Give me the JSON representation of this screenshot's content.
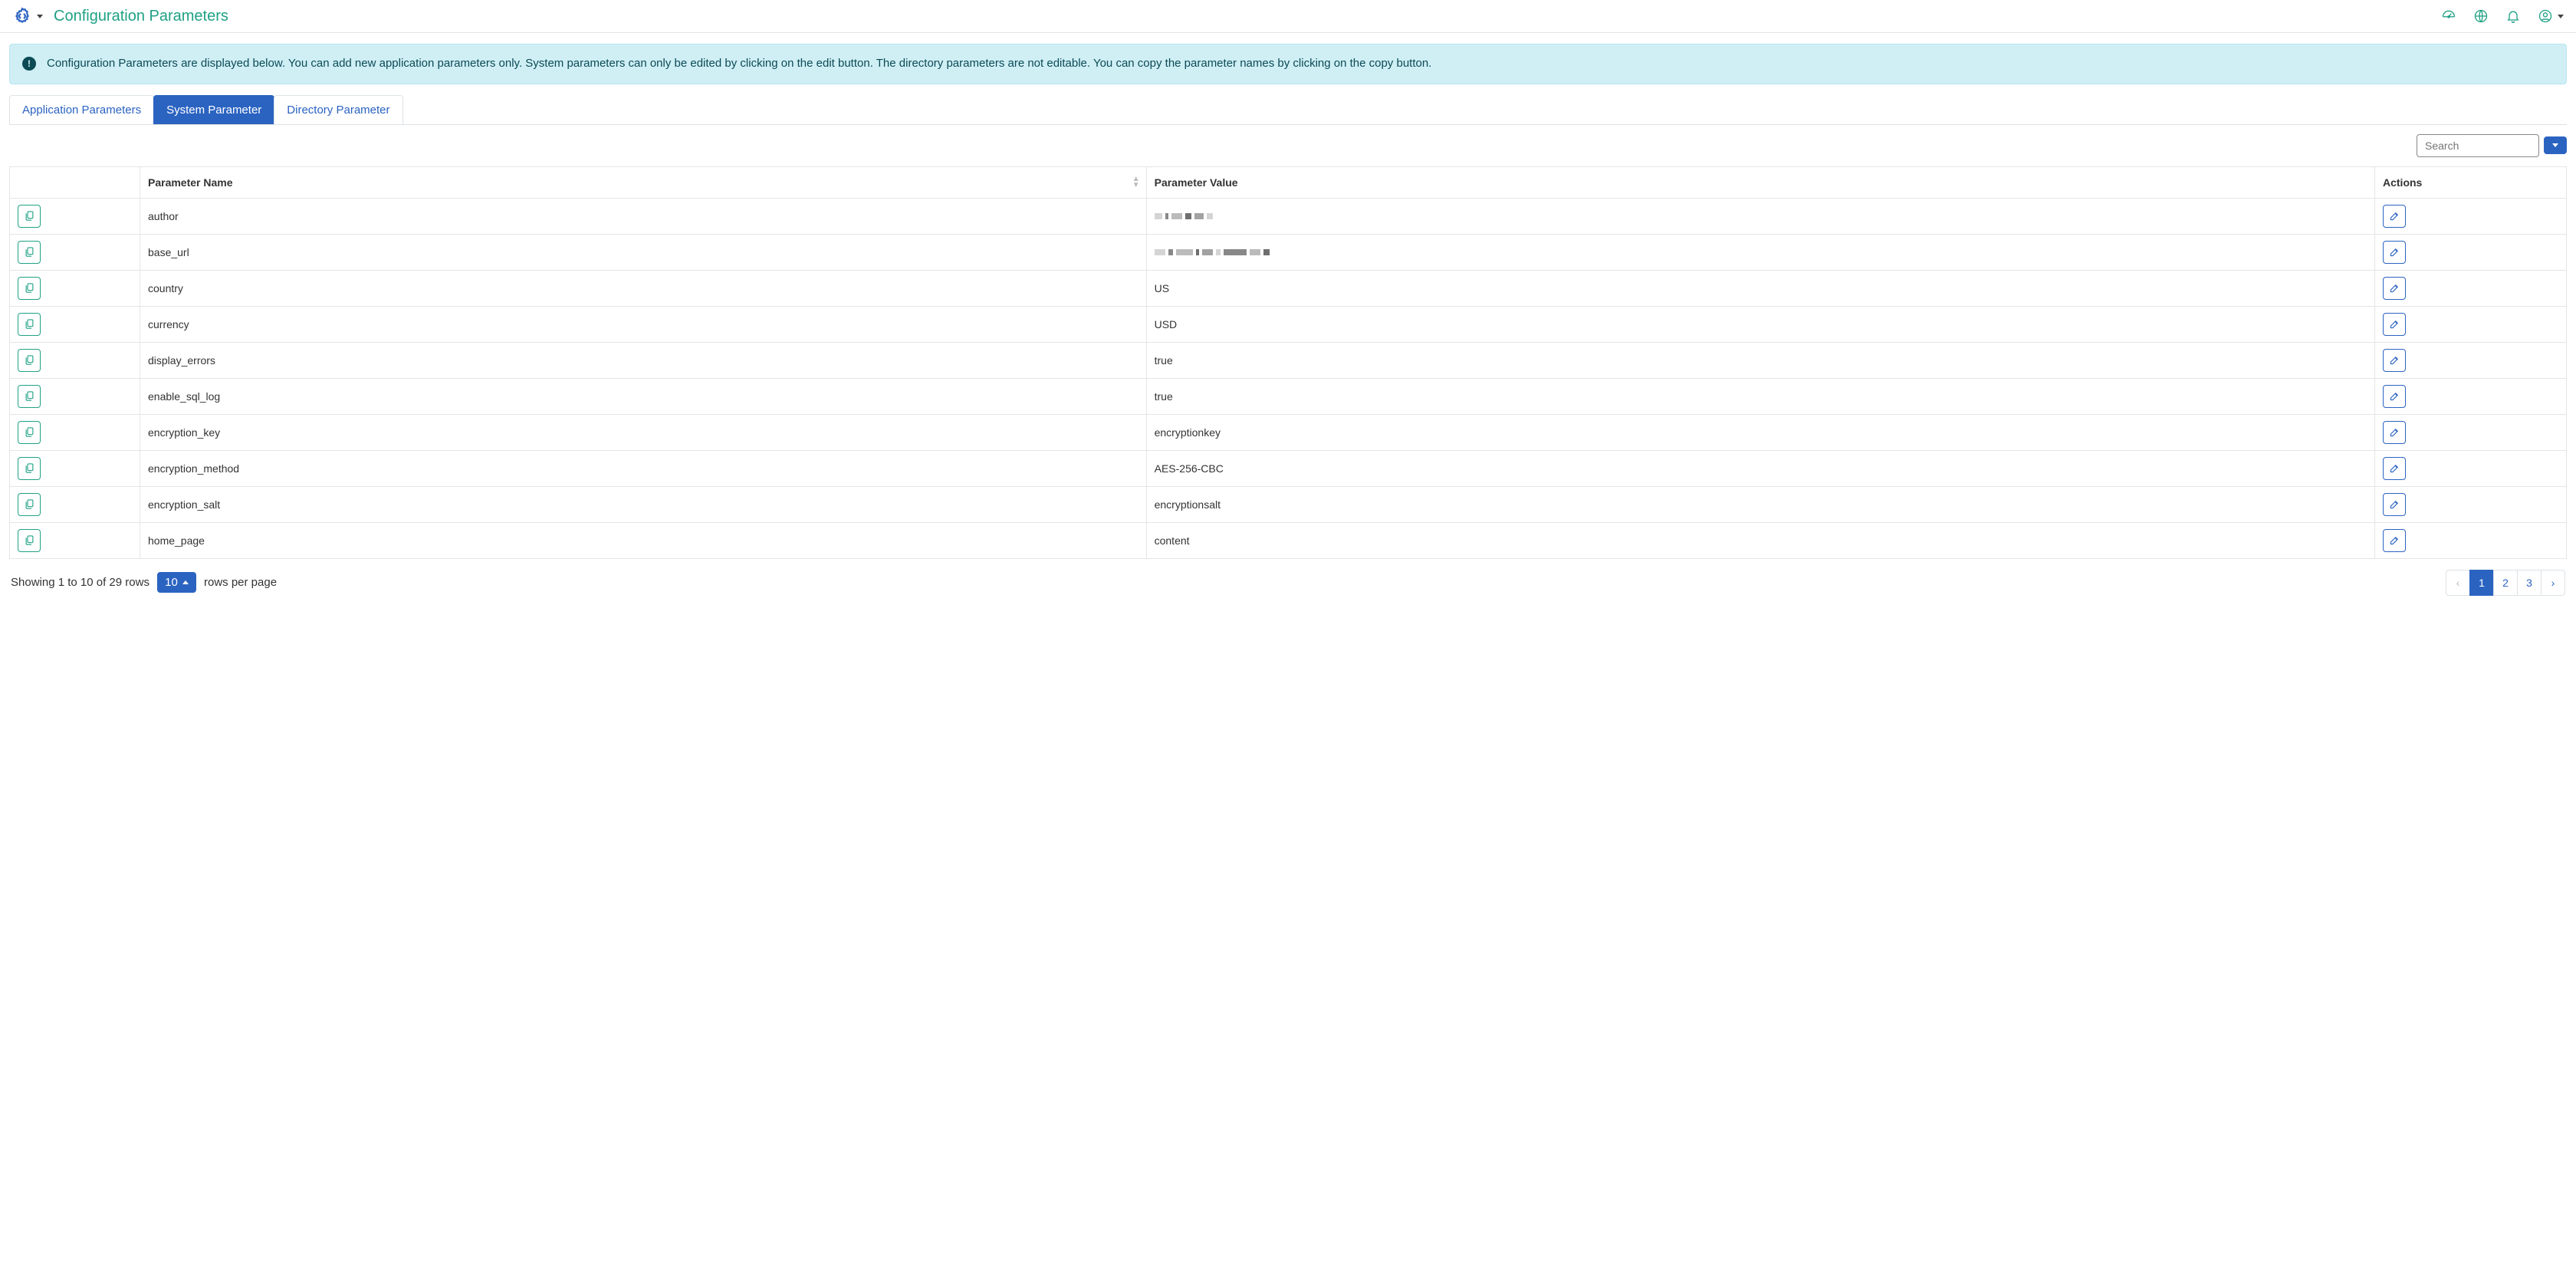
{
  "header": {
    "title": "Configuration Parameters"
  },
  "alert": {
    "text": "Configuration Parameters are displayed below. You can add new application parameters only. System parameters can only be edited by clicking on the edit button. The directory parameters are not editable. You can copy the parameter names by clicking on the copy button."
  },
  "tabs": {
    "items": [
      {
        "label": "Application Parameters",
        "active": false
      },
      {
        "label": "System Parameter",
        "active": true
      },
      {
        "label": "Directory Parameter",
        "active": false
      }
    ]
  },
  "search": {
    "placeholder": "Search"
  },
  "table": {
    "columns": {
      "name": "Parameter Name",
      "value": "Parameter Value",
      "actions": "Actions"
    },
    "rows": [
      {
        "name": "author",
        "value": "",
        "redacted": true,
        "redact_pattern": [
          10,
          4,
          14,
          8,
          12,
          8
        ]
      },
      {
        "name": "base_url",
        "value": "",
        "redacted": true,
        "redact_pattern": [
          14,
          6,
          22,
          4,
          14,
          6,
          30,
          14,
          8
        ]
      },
      {
        "name": "country",
        "value": "US"
      },
      {
        "name": "currency",
        "value": "USD"
      },
      {
        "name": "display_errors",
        "value": "true"
      },
      {
        "name": "enable_sql_log",
        "value": "true"
      },
      {
        "name": "encryption_key",
        "value": "encryptionkey"
      },
      {
        "name": "encryption_method",
        "value": "AES-256-CBC"
      },
      {
        "name": "encryption_salt",
        "value": "encryptionsalt"
      },
      {
        "name": "home_page",
        "value": "content"
      }
    ]
  },
  "footer": {
    "showing": "Showing 1 to 10 of 29 rows",
    "rows_per_page_value": "10",
    "rows_per_page_label": "rows per page",
    "pagination": {
      "prev": "‹",
      "pages": [
        "1",
        "2",
        "3"
      ],
      "active": "1",
      "next": "›"
    }
  },
  "colors": {
    "accent_blue": "#2b63c1",
    "accent_green": "#1fa185",
    "alert_bg": "#cfeff5",
    "border": "#e5e5e5"
  }
}
